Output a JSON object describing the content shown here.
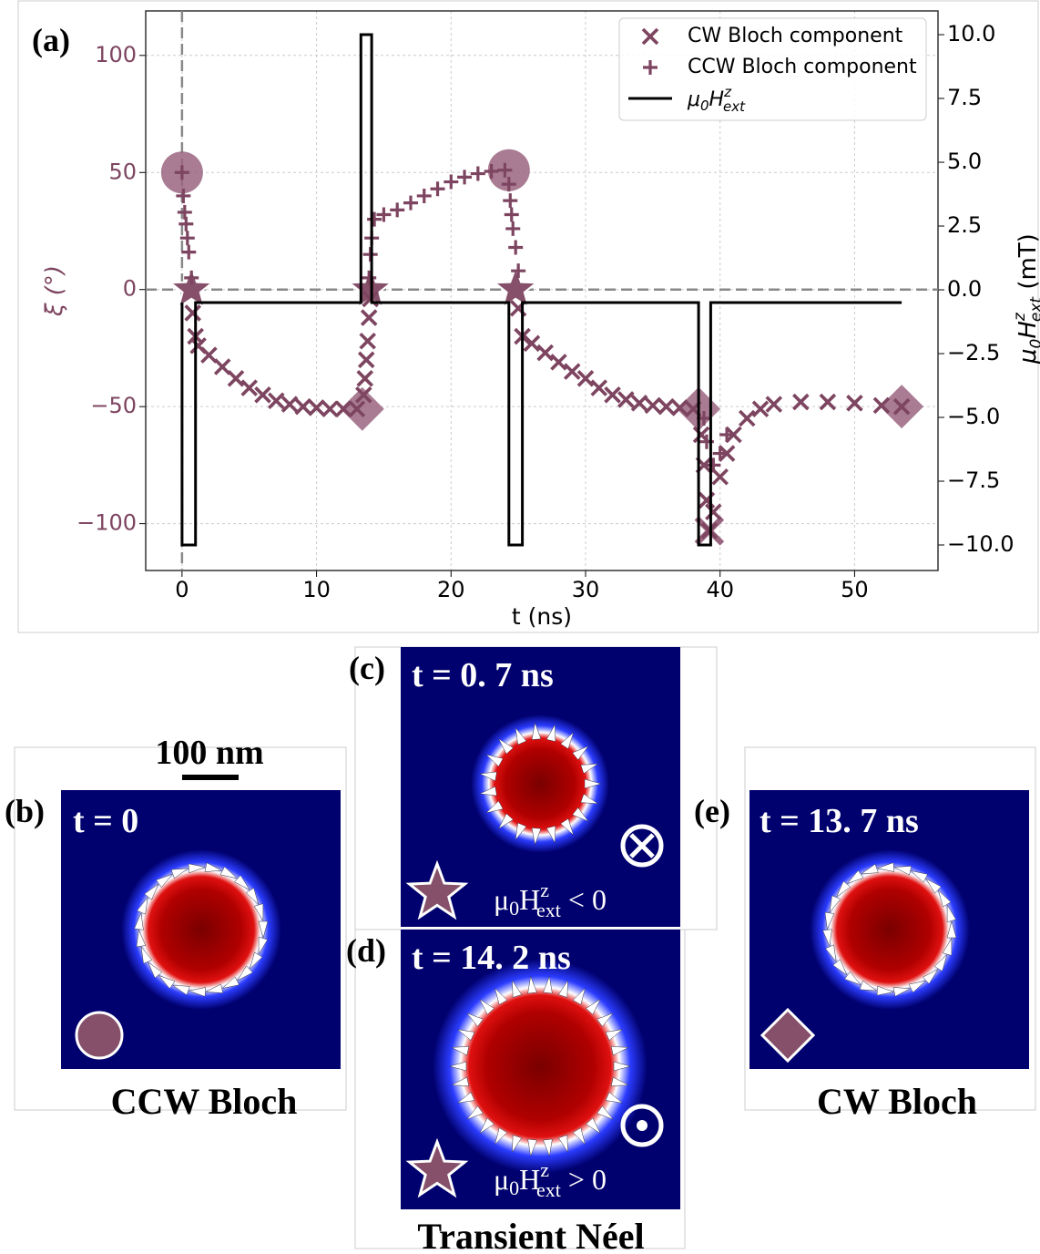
{
  "chart_data": {
    "type": "scatter",
    "panel_label": "(a)",
    "x_label": "t (ns)",
    "y_label": "ξ (°)",
    "y2_label": [
      "μ",
      "0",
      "H",
      "z",
      "ext",
      " (mT)"
    ],
    "xlim": [
      -2.7,
      56.2
    ],
    "ylim": [
      -120,
      119
    ],
    "y2lim": [
      -11,
      10.93
    ],
    "xticks": [
      0,
      10,
      20,
      30,
      40,
      50
    ],
    "yticks": [
      {
        "value": -100,
        "label": "−100"
      },
      {
        "value": -50,
        "label": "−50"
      },
      0,
      50,
      100
    ],
    "y2ticks": [
      {
        "value": -10,
        "label": "−10.0"
      },
      {
        "value": -7.5,
        "label": "−7.5"
      },
      {
        "value": -5,
        "label": "−5.0"
      },
      {
        "value": -2.5,
        "label": "−2.5"
      },
      {
        "value": 0,
        "label": "0.0"
      },
      {
        "value": 2.5,
        "label": "2.5"
      },
      {
        "value": 5,
        "label": "5.0"
      },
      {
        "value": 7.5,
        "label": "7.5"
      },
      {
        "value": 10,
        "label": "10.0"
      }
    ],
    "grid": true,
    "legend": "upper right",
    "hlines": [
      0
    ],
    "vlines": [
      0
    ],
    "series": [
      {
        "name": "CW Bloch component",
        "type": "scatter",
        "marker": "x",
        "color": "#7d4560",
        "x": [
          0.8,
          1.0,
          1.2,
          2,
          3,
          4,
          5,
          6,
          7,
          8,
          9,
          10,
          11,
          12,
          13,
          13.5,
          13.6,
          13.7,
          13.8,
          13.9,
          14.0,
          25.0,
          25.3,
          26,
          27,
          28,
          29,
          30,
          31,
          32,
          33,
          34,
          35,
          36,
          37,
          38,
          38.6,
          38.8,
          39,
          39.2,
          39.5,
          40,
          40.5,
          41,
          42,
          43,
          44,
          46,
          48,
          50,
          52,
          53.5
        ],
        "values": [
          -10,
          -20,
          -24,
          -28,
          -33,
          -38,
          -42,
          -45,
          -47.5,
          -49,
          -50,
          -50.5,
          -51,
          -51,
          -51,
          -45,
          -38,
          -30,
          -22,
          -12,
          -4,
          -8,
          -20,
          -23,
          -27,
          -31,
          -35,
          -38,
          -42,
          -45,
          -47,
          -48.5,
          -49.5,
          -50,
          -50.5,
          -51,
          -62,
          -75,
          -90,
          -103,
          -95,
          -80,
          -70,
          -62,
          -55,
          -51,
          -49,
          -48,
          -48,
          -48.5,
          -49.5,
          -50
        ]
      },
      {
        "name": "CCW Bloch component",
        "type": "scatter",
        "marker": "+",
        "color": "#7d4560",
        "x": [
          0,
          0.1,
          0.2,
          0.3,
          0.4,
          0.5,
          0.7,
          13.9,
          14.0,
          14.1,
          14.3,
          15,
          16,
          17,
          18,
          19,
          20,
          21,
          22,
          23,
          24,
          24.3,
          24.4,
          24.5,
          24.6,
          24.8,
          25,
          38.8,
          39,
          39.5,
          40,
          40.5
        ],
        "values": [
          50,
          40,
          33,
          28,
          22,
          16,
          5,
          5,
          15,
          22,
          30,
          32,
          34,
          37,
          40,
          43,
          46,
          48,
          49.5,
          50.5,
          51,
          45,
          38,
          32,
          26,
          18,
          8,
          -55,
          -65,
          -75,
          -70,
          -62
        ]
      },
      {
        "name": [
          "μ",
          "0",
          "H",
          "z",
          "ext"
        ],
        "type": "line",
        "axis": "y2",
        "color": "#000000",
        "x": [
          0,
          0,
          1,
          1,
          13.3,
          13.3,
          14.1,
          14.1,
          24.3,
          24.3,
          25.3,
          25.3,
          38.4,
          38.4,
          39.3,
          39.3,
          53.5
        ],
        "values": [
          -0.5,
          -10,
          -10,
          -0.5,
          -0.5,
          10,
          10,
          -0.5,
          -0.5,
          -10,
          -10,
          -0.5,
          -0.5,
          -10,
          -10,
          -0.5,
          -0.5
        ]
      }
    ],
    "highlights": [
      {
        "shape": "circle",
        "color": "#9a6580",
        "x": [
          0,
          24.3
        ],
        "values": [
          50,
          51
        ]
      },
      {
        "shape": "star",
        "color": "#86506a",
        "x": [
          0.7,
          14.0,
          24.8
        ],
        "values": [
          0,
          0,
          0
        ]
      },
      {
        "shape": "diamond",
        "color": "#9a6580",
        "x": [
          13.4,
          38.4,
          53.5
        ],
        "values": [
          -51,
          -51,
          -50
        ]
      },
      {
        "shape": "x",
        "color": "#9a6580",
        "x": [
          39.2
        ],
        "values": [
          -103
        ]
      }
    ]
  },
  "panels": {
    "b": {
      "letter": "(b)",
      "time": "t = 0",
      "caption": "CCW Bloch",
      "scale": "100 nm"
    },
    "c": {
      "letter": "(c)",
      "time": "t = 0. 7 ns",
      "field": [
        "μ",
        "0",
        "H",
        "z",
        "ext",
        " < 0"
      ]
    },
    "d": {
      "letter": "(d)",
      "time": "t = 14. 2 ns",
      "field": [
        "μ",
        "0",
        "H",
        "z",
        "ext",
        " > 0"
      ],
      "caption": "Transient Néel"
    },
    "e": {
      "letter": "(e)",
      "time": "t = 13. 7 ns",
      "caption": "CW Bloch"
    }
  }
}
